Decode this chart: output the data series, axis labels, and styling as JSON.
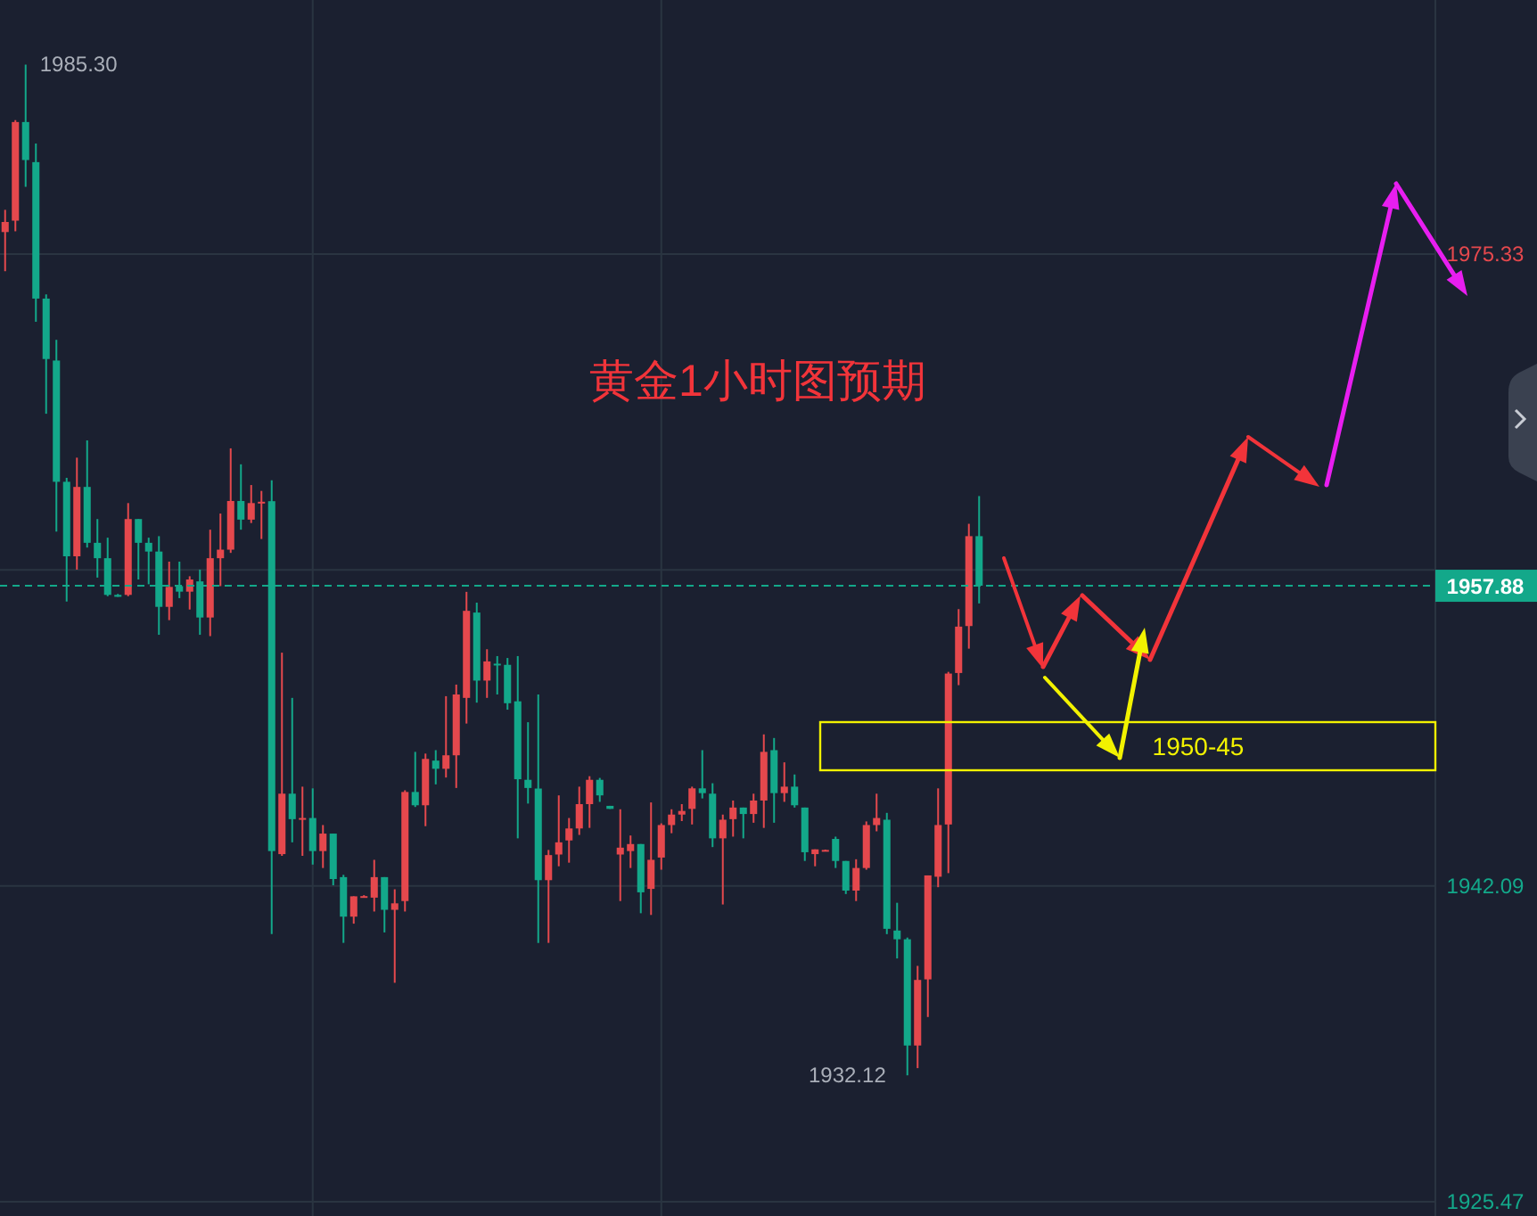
{
  "chart_data": {
    "type": "candlestick",
    "title": "黄金1小时图预期",
    "categories": [
      null,
      null,
      null,
      null,
      null,
      null,
      null,
      null,
      null,
      null,
      null,
      null,
      null,
      null,
      null,
      null,
      null,
      null,
      null,
      null,
      null,
      null,
      null,
      null,
      null,
      null,
      null,
      null,
      null,
      null,
      null,
      null,
      null,
      null,
      null,
      null,
      null,
      null,
      null,
      null,
      null,
      null,
      null,
      null,
      null,
      null,
      null,
      null,
      null,
      null,
      null,
      null,
      null,
      null,
      null,
      null,
      null,
      null,
      null,
      null,
      null,
      null,
      null,
      null,
      null,
      null,
      null,
      null,
      null,
      null,
      null,
      null,
      null,
      null,
      null,
      null,
      null,
      null,
      null,
      null,
      null,
      null,
      null,
      null,
      null,
      null,
      null,
      null,
      null,
      null,
      null,
      null,
      null,
      null,
      null,
      null,
      null,
      null,
      null,
      null,
      null,
      null,
      null,
      null,
      null,
      null,
      null,
      null,
      null,
      null,
      null,
      null,
      null,
      null,
      null,
      null,
      null,
      null,
      null,
      null,
      null,
      null,
      null,
      null,
      null,
      null,
      null,
      null,
      null,
      null,
      null,
      null,
      null,
      null,
      null,
      null,
      null,
      null,
      null,
      null
    ],
    "ohlc": [
      [
        1976.49,
        1977.66,
        1974.43,
        1977.02
      ],
      [
        1977.09,
        1982.38,
        1976.53,
        1982.28
      ],
      [
        1982.28,
        1985.3,
        1978.87,
        1980.28
      ],
      [
        1980.17,
        1981.15,
        1971.77,
        1972.99
      ],
      [
        1972.99,
        1973.21,
        1966.93,
        1969.81
      ],
      [
        1969.73,
        1970.82,
        1960.73,
        1963.35
      ],
      [
        1963.35,
        1963.56,
        1957.05,
        1959.43
      ],
      [
        1959.43,
        1964.62,
        1958.73,
        1963.08
      ],
      [
        1963.08,
        1965.53,
        1959.89,
        1960.14
      ],
      [
        1960.14,
        1961.39,
        1958.31,
        1959.33
      ],
      [
        1959.33,
        1960.41,
        1957.33,
        1957.4
      ],
      [
        1957.4,
        1957.45,
        1957.3,
        1957.3
      ],
      [
        1957.4,
        1962.23,
        1957.33,
        1961.39
      ],
      [
        1961.39,
        1961.39,
        1958.21,
        1960.14
      ],
      [
        1960.14,
        1960.41,
        1957.96,
        1959.68
      ],
      [
        1959.68,
        1960.49,
        1955.3,
        1956.77
      ],
      [
        1956.77,
        1959.15,
        1956.07,
        1957.82
      ],
      [
        1957.86,
        1959.15,
        1957.23,
        1957.57
      ],
      [
        1957.57,
        1958.38,
        1956.63,
        1958.21
      ],
      [
        1958.11,
        1958.73,
        1955.3,
        1956.21
      ],
      [
        1956.21,
        1960.83,
        1955.23,
        1959.33
      ],
      [
        1959.33,
        1961.68,
        1957.86,
        1959.78
      ],
      [
        1959.78,
        1965.11,
        1959.61,
        1962.34
      ],
      [
        1962.34,
        1964.27,
        1960.83,
        1961.36
      ],
      [
        1961.36,
        1963.18,
        1961.18,
        1962.23
      ],
      [
        1962.23,
        1962.87,
        1960.34,
        1962.3
      ],
      [
        1962.33,
        1963.43,
        1939.55,
        1943.92
      ],
      [
        1943.76,
        1954.36,
        1943.67,
        1946.94
      ],
      [
        1946.94,
        1951.98,
        1944.38,
        1945.6
      ],
      [
        1945.6,
        1947.31,
        1943.67,
        1945.66
      ],
      [
        1945.66,
        1947.22,
        1943.21,
        1943.92
      ],
      [
        1943.92,
        1945.29,
        1943.03,
        1944.84
      ],
      [
        1944.84,
        1944.84,
        1942.12,
        1942.45
      ],
      [
        1942.55,
        1942.67,
        1939.09,
        1940.47
      ],
      [
        1940.47,
        1941.54,
        1940.1,
        1941.54
      ],
      [
        1941.54,
        1941.6,
        1941.5,
        1941.55
      ],
      [
        1941.47,
        1943.46,
        1940.74,
        1942.55
      ],
      [
        1942.55,
        1942.55,
        1939.64,
        1940.83
      ],
      [
        1940.83,
        1941.91,
        1936.99,
        1941.17
      ],
      [
        1941.29,
        1947.12,
        1940.74,
        1947.03
      ],
      [
        1947.03,
        1949.14,
        1946.24,
        1946.33
      ],
      [
        1946.33,
        1949.05,
        1945.23,
        1948.77
      ],
      [
        1948.68,
        1949.23,
        1947.43,
        1948.25
      ],
      [
        1948.25,
        1952.07,
        1947.79,
        1948.96
      ],
      [
        1948.96,
        1952.68,
        1947.24,
        1952.16
      ],
      [
        1951.98,
        1957.56,
        1950.63,
        1956.56
      ],
      [
        1956.47,
        1956.99,
        1951.73,
        1952.89
      ],
      [
        1952.89,
        1954.54,
        1951.98,
        1953.9
      ],
      [
        1953.78,
        1954.18,
        1952.16,
        1953.72
      ],
      [
        1953.72,
        1954.08,
        1951.36,
        1951.7
      ],
      [
        1951.8,
        1954.18,
        1944.59,
        1947.7
      ],
      [
        1947.67,
        1950.7,
        1946.42,
        1947.24
      ],
      [
        1947.21,
        1952.16,
        1939.09,
        1942.39
      ],
      [
        1942.39,
        1943.98,
        1939.09,
        1943.71
      ],
      [
        1943.74,
        1946.85,
        1943.12,
        1944.38
      ],
      [
        1944.48,
        1945.66,
        1943.31,
        1945.11
      ],
      [
        1945.11,
        1947.31,
        1944.77,
        1946.39
      ],
      [
        1946.39,
        1947.86,
        1945.14,
        1947.67
      ],
      [
        1947.67,
        1947.77,
        1946.51,
        1946.85
      ],
      [
        1946.3,
        1946.3,
        1946.14,
        1946.14
      ],
      [
        1943.74,
        1946.12,
        1941.29,
        1944.1
      ],
      [
        1943.92,
        1944.74,
        1943.03,
        1944.29
      ],
      [
        1944.29,
        1944.29,
        1940.65,
        1941.75
      ],
      [
        1941.93,
        1946.48,
        1940.56,
        1943.46
      ],
      [
        1943.58,
        1945.38,
        1942.94,
        1945.29
      ],
      [
        1945.29,
        1946.12,
        1944.86,
        1945.84
      ],
      [
        1945.84,
        1946.39,
        1945.5,
        1946.03
      ],
      [
        1946.14,
        1947.31,
        1945.32,
        1947.22
      ],
      [
        1947.22,
        1949.23,
        1946.69,
        1946.97
      ],
      [
        1946.94,
        1947.49,
        1944.13,
        1944.59
      ],
      [
        1944.59,
        1945.84,
        1941.11,
        1945.57
      ],
      [
        1945.6,
        1946.58,
        1944.68,
        1946.21
      ],
      [
        1946.21,
        1946.21,
        1944.59,
        1945.87
      ],
      [
        1945.87,
        1946.94,
        1945.41,
        1946.58
      ],
      [
        1946.58,
        1950.06,
        1945.14,
        1949.14
      ],
      [
        1949.23,
        1949.87,
        1945.41,
        1946.97
      ],
      [
        1946.97,
        1948.59,
        1946.51,
        1947.31
      ],
      [
        1947.31,
        1947.95,
        1946.21,
        1946.33
      ],
      [
        1946.21,
        1946.21,
        1943.4,
        1943.86
      ],
      [
        1943.76,
        1944.01,
        1943.12,
        1944.01
      ],
      [
        1943.95,
        1944.0,
        1943.93,
        1943.98
      ],
      [
        1944.56,
        1944.68,
        1943.03,
        1943.4
      ],
      [
        1943.4,
        1943.4,
        1941.66,
        1941.84
      ],
      [
        1941.84,
        1943.49,
        1941.29,
        1943.03
      ],
      [
        1943.03,
        1945.48,
        1942.94,
        1945.29
      ],
      [
        1945.29,
        1946.94,
        1944.96,
        1945.66
      ],
      [
        1945.57,
        1945.93,
        1939.55,
        1939.83
      ],
      [
        1939.74,
        1941.2,
        1938.27,
        1939.28
      ],
      [
        1939.28,
        1939.37,
        1932.12,
        1933.69
      ],
      [
        1933.69,
        1937.88,
        1932.5,
        1937.14
      ],
      [
        1937.17,
        1942.64,
        1935.19,
        1942.64
      ],
      [
        1942.57,
        1947.22,
        1942.02,
        1945.29
      ],
      [
        1945.32,
        1953.35,
        1942.76,
        1953.26
      ],
      [
        1953.29,
        1956.65,
        1952.65,
        1955.73
      ],
      [
        1955.76,
        1961.14,
        1954.57,
        1960.49
      ],
      [
        1960.49,
        1962.6,
        1956.95,
        1957.88
      ],
      null,
      null,
      null,
      null,
      null,
      null,
      null,
      null,
      null,
      null,
      null,
      null,
      null,
      null,
      null,
      null,
      null,
      null,
      null,
      null,
      null,
      null,
      null,
      null,
      null,
      null,
      null,
      null,
      null,
      null,
      null,
      null,
      null,
      null,
      null,
      null,
      null,
      null,
      null,
      null,
      null,
      null,
      null,
      null
    ],
    "colors": [
      "#e5484d",
      "#e5484d",
      "#13a88a",
      "#13a88a",
      "#13a88a",
      "#13a88a",
      "#13a88a",
      "#e5484d",
      "#13a88a",
      "#13a88a",
      "#13a88a",
      "#13a88a",
      "#e5484d",
      "#13a88a",
      "#13a88a",
      "#13a88a",
      "#e5484d",
      "#13a88a",
      "#e5484d",
      "#13a88a",
      "#e5484d",
      "#e5484d",
      "#e5484d",
      "#13a88a",
      "#e5484d",
      "#e5484d",
      "#13a88a",
      "#e5484d",
      "#13a88a",
      "#e5484d",
      "#13a88a",
      "#e5484d",
      "#13a88a",
      "#13a88a",
      "#e5484d",
      "#e5484d",
      "#e5484d",
      "#13a88a",
      "#e5484d",
      "#e5484d",
      "#13a88a",
      "#e5484d",
      "#13a88a",
      "#e5484d",
      "#e5484d",
      "#e5484d",
      "#13a88a",
      "#e5484d",
      "#13a88a",
      "#13a88a",
      "#13a88a",
      "#13a88a",
      "#13a88a",
      "#e5484d",
      "#e5484d",
      "#e5484d",
      "#e5484d",
      "#e5484d",
      "#13a88a",
      "#13a88a",
      "#e5484d",
      "#e5484d",
      "#13a88a",
      "#e5484d",
      "#e5484d",
      "#e5484d",
      "#e5484d",
      "#e5484d",
      "#13a88a",
      "#13a88a",
      "#e5484d",
      "#e5484d",
      "#13a88a",
      "#e5484d",
      "#e5484d",
      "#13a88a",
      "#e5484d",
      "#13a88a",
      "#13a88a",
      "#e5484d",
      "#e5484d",
      "#13a88a",
      "#13a88a",
      "#e5484d",
      "#e5484d",
      "#e5484d",
      "#13a88a",
      "#13a88a",
      "#13a88a",
      "#e5484d",
      "#e5484d",
      "#e5484d",
      "#e5484d",
      "#e5484d",
      "#e5484d",
      "#13a88a",
      null,
      null,
      null,
      null,
      null,
      null,
      null,
      null,
      null,
      null,
      null,
      null,
      null,
      null,
      null,
      null,
      null,
      null,
      null,
      null,
      null,
      null,
      null,
      null,
      null,
      null,
      null,
      null,
      null,
      null,
      null,
      null,
      null,
      null,
      null,
      null,
      null,
      null,
      null,
      null,
      null,
      null,
      null,
      null
    ],
    "ylim": [
      1925.47,
      1988.7
    ],
    "yticks": [
      1975.33,
      {
        "value": 1958.71,
        "label": null
      },
      1942.09,
      1925.47
    ],
    "grid": true,
    "ref_lines": [
      {
        "axis": "y",
        "value": 1957.88,
        "label": "1957.88",
        "color": "#13a88a",
        "line_style": "dashed"
      }
    ],
    "annotations": [
      "1985.30",
      "1932.12",
      "1950-45"
    ]
  }
}
